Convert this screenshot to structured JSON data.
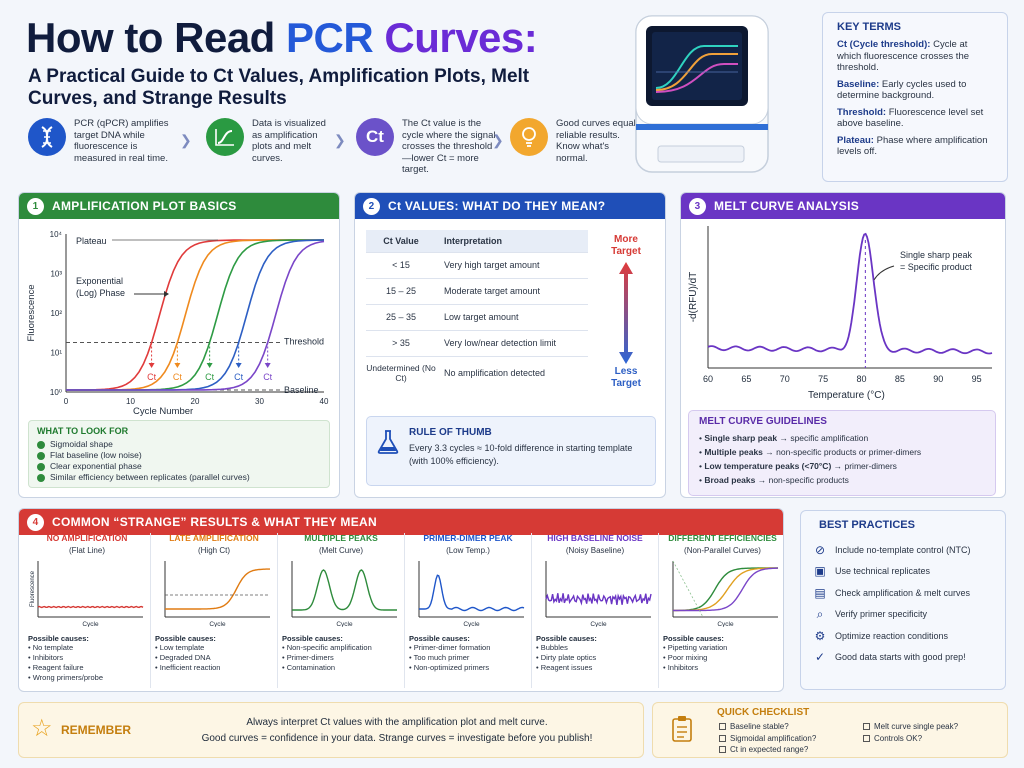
{
  "title": {
    "part1": "How to Read ",
    "part2": "PCR",
    "part3": " Curves:"
  },
  "subtitle": "A Practical Guide to Ct Values, Amplification Plots, Melt Curves, and Strange Results",
  "intro": [
    {
      "text": "PCR (qPCR) amplifies target DNA while fluorescence is measured in real time.",
      "icon": "dna-icon",
      "color": "#1f56c9"
    },
    {
      "text": "Data is visualized as amplification plots and melt curves.",
      "icon": "chart-line-icon",
      "color": "#2a9a42"
    },
    {
      "text": "The Ct value is the cycle where the signal crosses the threshold—lower Ct = more target.",
      "icon": "ct-badge",
      "label": "Ct",
      "color": "#6b52c9"
    },
    {
      "text": "Good curves equal reliable results. Know what's normal.",
      "icon": "lightbulb-icon",
      "color": "#f2a72e"
    }
  ],
  "key_terms": {
    "heading": "KEY TERMS",
    "items": [
      {
        "term": "Ct (Cycle threshold):",
        "def": "Cycle at which fluorescence crosses the threshold."
      },
      {
        "term": "Baseline:",
        "def": "Early cycles used to determine background."
      },
      {
        "term": "Threshold:",
        "def": "Fluorescence level set above baseline."
      },
      {
        "term": "Plateau:",
        "def": "Phase where amplification levels off."
      }
    ]
  },
  "section1": {
    "num": "1",
    "heading": "AMPLIFICATION PLOT BASICS",
    "color": "#2e8b3c",
    "y_ticks": [
      "10⁴",
      "10³",
      "10²",
      "10¹",
      "10⁰"
    ],
    "x_ticks": [
      "0",
      "10",
      "20",
      "30",
      "40"
    ],
    "ylabel": "Fluorescence",
    "xlabel": "Cycle Number",
    "labels": {
      "plateau": "Plateau",
      "exponential": "Exponential (Log) Phase",
      "threshold": "Threshold",
      "baseline": "Baseline",
      "ct": "Ct"
    },
    "curves": [
      {
        "color": "#e03b3b",
        "mid": 14.5
      },
      {
        "color": "#ef8a1e",
        "mid": 18.5
      },
      {
        "color": "#2e9b44",
        "mid": 23.5
      },
      {
        "color": "#2d5fc4",
        "mid": 28
      },
      {
        "color": "#7a46c8",
        "mid": 32.5
      }
    ],
    "what_to_look_for": {
      "heading": "WHAT TO LOOK FOR",
      "items": [
        "Sigmoidal shape",
        "Flat baseline (low noise)",
        "Clear exponential phase",
        "Similar efficiency between replicates (parallel curves)"
      ]
    }
  },
  "section2": {
    "num": "2",
    "heading": "Ct VALUES: WHAT DO THEY MEAN?",
    "color": "#1f4fb8",
    "table_headers": [
      "Ct Value",
      "Interpretation"
    ],
    "rows": [
      [
        "< 15",
        "Very high target amount"
      ],
      [
        "15 – 25",
        "Moderate target amount"
      ],
      [
        "25 – 35",
        "Low target amount"
      ],
      [
        "> 35",
        "Very low/near detection limit"
      ],
      [
        "Undetermined (No Ct)",
        "No amplification detected"
      ]
    ],
    "more_target": "More Target",
    "less_target": "Less Target",
    "rule": {
      "heading": "RULE OF THUMB",
      "text": "Every 3.3 cycles ≈ 10-fold difference in starting template (with 100% efficiency)."
    }
  },
  "section3": {
    "num": "3",
    "heading": "MELT CURVE ANALYSIS",
    "color": "#6a35c4",
    "ylabel": "-d(RFU)/dT",
    "xlabel": "Temperature (°C)",
    "x_ticks": [
      "60",
      "65",
      "70",
      "75",
      "80",
      "85",
      "90",
      "95"
    ],
    "annotation": "Single sharp peak = Specific product",
    "guidelines": {
      "heading": "MELT CURVE GUIDELINES",
      "items": [
        {
          "bold": "Single sharp peak",
          "rest": " → specific amplification"
        },
        {
          "bold": "Multiple peaks",
          "rest": " → non-specific products or primer-dimers"
        },
        {
          "bold": "Low temperature peaks (<70°C)",
          "rest": " → primer-dimers"
        },
        {
          "bold": "Broad peaks",
          "rest": " → non-specific products"
        }
      ]
    }
  },
  "section4": {
    "num": "4",
    "heading": "COMMON “STRANGE” RESULTS & WHAT THEY MEAN",
    "color": "#d63a35",
    "axis_cycle": "Cycle",
    "axis_fluor": "Fluorescence",
    "causes_label": "Possible causes:",
    "panels": [
      {
        "title": "NO AMPLIFICATION",
        "sub": "(Flat Line)",
        "color": "#d63a35",
        "causes": [
          "No template",
          "Inhibitors",
          "Reagent failure",
          "Wrong primers/probe"
        ]
      },
      {
        "title": "LATE AMPLIFICATION",
        "sub": "(High Ct)",
        "color": "#e07b12",
        "causes": [
          "Low template",
          "Degraded DNA",
          "Inefficient reaction"
        ]
      },
      {
        "title": "MULTIPLE PEAKS",
        "sub": "(Melt Curve)",
        "color": "#2e8b3c",
        "causes": [
          "Non-specific amplification",
          "Primer-dimers",
          "Contamination"
        ]
      },
      {
        "title": "PRIMER-DIMER PEAK",
        "sub": "(Low Temp.)",
        "color": "#1f56c9",
        "causes": [
          "Primer-dimer formation",
          "Too much primer",
          "Non-optimized primers"
        ]
      },
      {
        "title": "HIGH BASELINE NOISE",
        "sub": "(Noisy Baseline)",
        "color": "#6a35c4",
        "causes": [
          "Bubbles",
          "Dirty plate optics",
          "Reagent issues"
        ]
      },
      {
        "title": "DIFFERENT EFFICIENCIES",
        "sub": "(Non-Parallel Curves)",
        "color": "#2e8b3c",
        "causes": [
          "Pipetting variation",
          "Poor mixing",
          "Inhibitors"
        ]
      }
    ]
  },
  "best_practices": {
    "heading": "BEST PRACTICES",
    "items": [
      {
        "icon": "no-template-icon",
        "glyph": "⊘",
        "text": "Include no-template control (NTC)"
      },
      {
        "icon": "replicates-icon",
        "glyph": "▣",
        "text": "Use technical replicates"
      },
      {
        "icon": "chart-check-icon",
        "glyph": "▤",
        "text": "Check amplification & melt curves"
      },
      {
        "icon": "search-icon",
        "glyph": "⌕",
        "text": "Verify primer specificity"
      },
      {
        "icon": "gear-icon",
        "glyph": "⚙",
        "text": "Optimize reaction conditions"
      },
      {
        "icon": "check-circle-icon",
        "glyph": "✓",
        "text": "Good data starts with good prep!"
      }
    ]
  },
  "remember": {
    "label": "REMEMBER",
    "line1": "Always interpret Ct values with the amplification plot and melt curve.",
    "line2": "Good curves = confidence in your data. Strange curves = investigate before you publish!"
  },
  "quick_checklist": {
    "heading": "QUICK CHECKLIST",
    "col1": [
      "Baseline stable?",
      "Sigmoidal amplification?",
      "Ct in expected range?"
    ],
    "col2": [
      "Melt curve single peak?",
      "Controls OK?"
    ]
  }
}
